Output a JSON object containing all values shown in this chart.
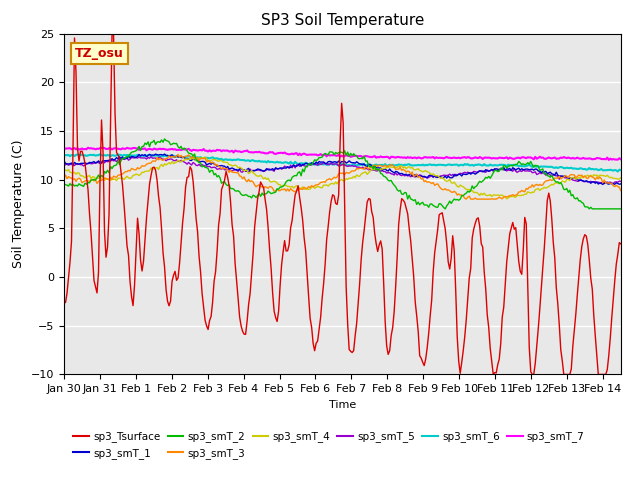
{
  "title": "SP3 Soil Temperature",
  "xlabel": "Time",
  "ylabel": "Soil Temperature (C)",
  "ylim": [
    -10,
    25
  ],
  "xlim": [
    0,
    15.5
  ],
  "bg_color": "#e8e8e8",
  "annotation_text": "TZ_osu",
  "annotation_color": "#cc0000",
  "annotation_bg": "#ffffcc",
  "annotation_border": "#cc8800",
  "x_ticks": [
    0,
    1,
    2,
    3,
    4,
    5,
    6,
    7,
    8,
    9,
    10,
    11,
    12,
    13,
    14,
    15
  ],
  "x_tick_labels": [
    "Jan 30",
    "Jan 31",
    "Feb 1",
    "Feb 2",
    "Feb 3",
    "Feb 4",
    "Feb 5",
    "Feb 6",
    "Feb 7",
    "Feb 8",
    "Feb 9",
    "Feb 10",
    "Feb 11",
    "Feb 12",
    "Feb 13",
    "Feb 14"
  ],
  "series": {
    "sp3_Tsurface": {
      "color": "#dd0000",
      "lw": 1.0
    },
    "sp3_smT_1": {
      "color": "#0000cc",
      "lw": 1.0
    },
    "sp3_smT_2": {
      "color": "#00bb00",
      "lw": 1.0
    },
    "sp3_smT_3": {
      "color": "#ff8800",
      "lw": 1.0
    },
    "sp3_smT_4": {
      "color": "#cccc00",
      "lw": 1.0
    },
    "sp3_smT_5": {
      "color": "#9900cc",
      "lw": 1.0
    },
    "sp3_smT_6": {
      "color": "#00cccc",
      "lw": 1.5
    },
    "sp3_smT_7": {
      "color": "#ff00ff",
      "lw": 1.5
    }
  }
}
